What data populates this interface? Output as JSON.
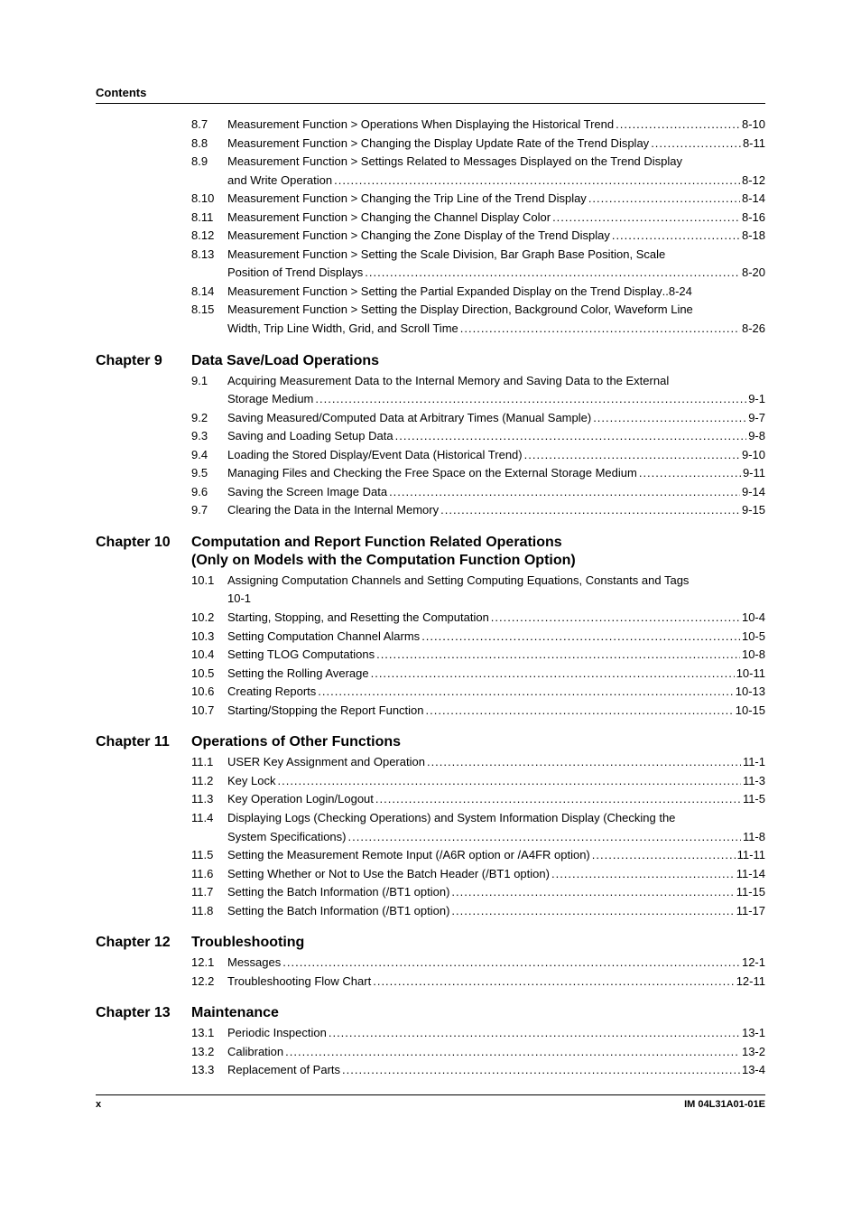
{
  "running_head": "Contents",
  "footer_left": "x",
  "footer_right": "IM 04L31A01-01E",
  "blocks": [
    {
      "chapter_label": "",
      "chapter_title": "",
      "chapter_subtitle": "",
      "entries": [
        {
          "num": "8.7",
          "lines": [
            "Measurement Function > Operations When Displaying the Historical Trend"
          ],
          "page": "8-10"
        },
        {
          "num": "8.8",
          "lines": [
            "Measurement Function > Changing the Display Update Rate of the Trend Display"
          ],
          "page": "8-11"
        },
        {
          "num": "8.9",
          "lines": [
            "Measurement Function > Settings Related to Messages Displayed on the Trend Display",
            "and Write Operation"
          ],
          "page": "8-12"
        },
        {
          "num": "8.10",
          "lines": [
            "Measurement Function > Changing the Trip Line of the Trend Display"
          ],
          "page": "8-14"
        },
        {
          "num": "8.11",
          "lines": [
            "Measurement Function > Changing the Channel Display Color"
          ],
          "page": "8-16"
        },
        {
          "num": "8.12",
          "lines": [
            "Measurement Function > Changing the Zone Display of the Trend Display"
          ],
          "page": "8-18"
        },
        {
          "num": "8.13",
          "lines": [
            "Measurement Function > Setting the Scale Division, Bar Graph Base Position, Scale",
            "Position of Trend Displays"
          ],
          "page": "8-20"
        },
        {
          "num": "8.14",
          "lines": [
            "Measurement Function > Setting the Partial Expanded Display on the Trend Display"
          ],
          "page": "8-24",
          "no_leader": true
        },
        {
          "num": "8.15",
          "lines": [
            "Measurement Function > Setting the Display Direction, Background Color, Waveform Line",
            "Width, Trip Line Width, Grid, and Scroll Time"
          ],
          "page": "8-26"
        }
      ]
    },
    {
      "chapter_label": "Chapter 9",
      "chapter_title": "Data Save/Load Operations",
      "chapter_subtitle": "",
      "entries": [
        {
          "num": "9.1",
          "lines": [
            "Acquiring Measurement Data to the Internal Memory and Saving Data to the External",
            "Storage Medium"
          ],
          "page": "9-1"
        },
        {
          "num": "9.2",
          "lines": [
            "Saving Measured/Computed Data at Arbitrary Times (Manual Sample)"
          ],
          "page": "9-7"
        },
        {
          "num": "9.3",
          "lines": [
            "Saving and Loading Setup Data"
          ],
          "page": "9-8"
        },
        {
          "num": "9.4",
          "lines": [
            "Loading the Stored Display/Event Data (Historical Trend)"
          ],
          "page": "9-10"
        },
        {
          "num": "9.5",
          "lines": [
            "Managing Files and Checking the Free Space on the External Storage Medium"
          ],
          "page": "9-11"
        },
        {
          "num": "9.6",
          "lines": [
            "Saving the Screen Image Data"
          ],
          "page": "9-14"
        },
        {
          "num": "9.7",
          "lines": [
            "Clearing the Data in the Internal Memory"
          ],
          "page": "9-15"
        }
      ]
    },
    {
      "chapter_label": "Chapter 10",
      "chapter_title": "Computation and Report Function Related Operations",
      "chapter_subtitle": "(Only on Models with the Computation Function Option)",
      "entries": [
        {
          "num": "10.1",
          "lines": [
            "Assigning Computation Channels and Setting Computing Equations, Constants and Tags",
            "10-1"
          ],
          "page": "",
          "no_page": true
        },
        {
          "num": "10.2",
          "lines": [
            "Starting, Stopping, and Resetting the Computation"
          ],
          "page": "10-4"
        },
        {
          "num": "10.3",
          "lines": [
            "Setting Computation Channel Alarms"
          ],
          "page": "10-5"
        },
        {
          "num": "10.4",
          "lines": [
            "Setting TLOG Computations"
          ],
          "page": "10-8"
        },
        {
          "num": "10.5",
          "lines": [
            "Setting the Rolling Average"
          ],
          "page": "10-11"
        },
        {
          "num": "10.6",
          "lines": [
            "Creating Reports"
          ],
          "page": "10-13"
        },
        {
          "num": "10.7",
          "lines": [
            "Starting/Stopping the Report Function"
          ],
          "page": "10-15"
        }
      ]
    },
    {
      "chapter_label": "Chapter 11",
      "chapter_title": "Operations of Other Functions",
      "chapter_subtitle": "",
      "entries": [
        {
          "num": "11.1",
          "lines": [
            "USER Key Assignment and Operation"
          ],
          "page": "11-1"
        },
        {
          "num": "11.2",
          "lines": [
            "Key Lock"
          ],
          "page": "11-3"
        },
        {
          "num": "11.3",
          "lines": [
            "Key Operation Login/Logout"
          ],
          "page": "11-5"
        },
        {
          "num": "11.4",
          "lines": [
            "Displaying Logs (Checking Operations) and System Information Display (Checking the",
            "System Specifications)"
          ],
          "page": "11-8"
        },
        {
          "num": "11.5",
          "lines": [
            "Setting the Measurement Remote Input (/A6R option or /A4FR option)"
          ],
          "page": "11-11"
        },
        {
          "num": "11.6",
          "lines": [
            "Setting Whether or Not to Use the Batch Header  (/BT1 option)"
          ],
          "page": "11-14"
        },
        {
          "num": "11.7",
          "lines": [
            "Setting the Batch Information  (/BT1 option)"
          ],
          "page": "11-15"
        },
        {
          "num": "11.8",
          "lines": [
            "Setting the Batch Information  (/BT1 option)"
          ],
          "page": "11-17"
        }
      ]
    },
    {
      "chapter_label": "Chapter 12",
      "chapter_title": "Troubleshooting",
      "chapter_subtitle": "",
      "entries": [
        {
          "num": "12.1",
          "lines": [
            "Messages"
          ],
          "page": "12-1"
        },
        {
          "num": "12.2",
          "lines": [
            "Troubleshooting Flow Chart"
          ],
          "page": "12-11"
        }
      ]
    },
    {
      "chapter_label": "Chapter 13",
      "chapter_title": "Maintenance",
      "chapter_subtitle": "",
      "entries": [
        {
          "num": "13.1",
          "lines": [
            "Periodic Inspection"
          ],
          "page": "13-1"
        },
        {
          "num": "13.2",
          "lines": [
            "Calibration"
          ],
          "page": "13-2"
        },
        {
          "num": "13.3",
          "lines": [
            "Replacement of Parts"
          ],
          "page": "13-4"
        }
      ]
    }
  ]
}
